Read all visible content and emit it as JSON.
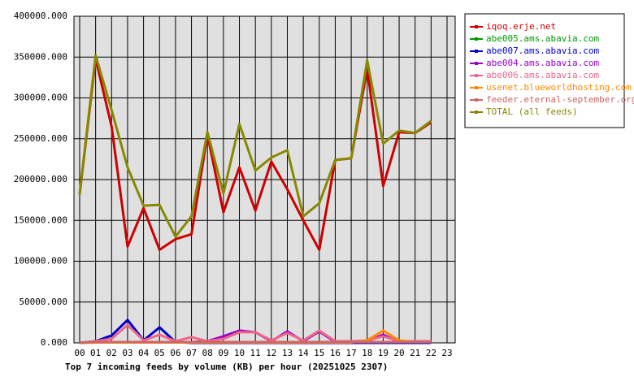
{
  "chart_data": {
    "type": "line",
    "title": "Top 7 incoming feeds by volume (KB) per hour (20251025 2307)",
    "categories": [
      "00",
      "01",
      "02",
      "03",
      "04",
      "05",
      "06",
      "07",
      "08",
      "09",
      "10",
      "11",
      "12",
      "13",
      "14",
      "15",
      "16",
      "17",
      "18",
      "19",
      "20",
      "21",
      "22",
      "23"
    ],
    "ylim": [
      0,
      400000
    ],
    "yticks": [
      {
        "value": 0,
        "label": "0.000"
      },
      {
        "value": 50000,
        "label": "50000.000"
      },
      {
        "value": 100000,
        "label": "100000.000"
      },
      {
        "value": 150000,
        "label": "150000.000"
      },
      {
        "value": 200000,
        "label": "200000.000"
      },
      {
        "value": 250000,
        "label": "250000.000"
      },
      {
        "value": 300000,
        "label": "300000.000"
      },
      {
        "value": 350000,
        "label": "350000.000"
      },
      {
        "value": 400000,
        "label": "400000.000"
      }
    ],
    "grid": true,
    "legend": "right",
    "series": [
      {
        "name": "iqoq.erje.net",
        "color": "#cc0000",
        "values": [
          182000,
          348000,
          265000,
          118000,
          165000,
          114000,
          127000,
          133000,
          255000,
          160000,
          215000,
          162000,
          222000,
          188000,
          150000,
          114000,
          224000,
          226000,
          336000,
          192000,
          258000,
          257000,
          270000,
          null
        ]
      },
      {
        "name": "abe005.ams.abavia.com",
        "color": "#009900",
        "values": [
          0,
          1000,
          1000,
          1000,
          1000,
          1000,
          1000,
          1000,
          1000,
          1000,
          1000,
          1000,
          1000,
          1000,
          1000,
          1000,
          1000,
          1000,
          1000,
          1000,
          1000,
          1000,
          1000,
          null
        ]
      },
      {
        "name": "abe007.ams.abavia.com",
        "color": "#0000cc",
        "values": [
          0,
          2000,
          9000,
          28000,
          3000,
          19000,
          1000,
          0,
          0,
          0,
          0,
          0,
          0,
          0,
          0,
          0,
          0,
          0,
          0,
          0,
          0,
          0,
          0,
          null
        ]
      },
      {
        "name": "abe004.ams.abavia.com",
        "color": "#9900cc",
        "values": [
          0,
          1000,
          1000,
          1000,
          1000,
          1000,
          1000,
          1000,
          2000,
          8000,
          15000,
          13000,
          2000,
          14000,
          2000,
          14000,
          1000,
          1000,
          2000,
          10000,
          1000,
          1000,
          1000,
          null
        ]
      },
      {
        "name": "abe006.ams.abavia.com",
        "color": "#ee6688",
        "values": [
          0,
          2000,
          5000,
          22000,
          3000,
          10000,
          2000,
          7000,
          2000,
          5000,
          13000,
          13000,
          3000,
          12000,
          3000,
          15000,
          2000,
          2000,
          3000,
          8000,
          2000,
          2000,
          2000,
          null
        ]
      },
      {
        "name": "usenet.blueworldhosting.com",
        "color": "#ff8800",
        "values": [
          0,
          500,
          500,
          500,
          500,
          500,
          500,
          500,
          500,
          500,
          500,
          500,
          500,
          500,
          500,
          500,
          500,
          500,
          3000,
          15000,
          3000,
          1000,
          1000,
          null
        ]
      },
      {
        "name": "feeder.eternal-september.org",
        "color": "#cc6666",
        "values": [
          0,
          1000,
          1000,
          1000,
          1000,
          1000,
          1000,
          1000,
          1000,
          1000,
          1000,
          1000,
          1000,
          1000,
          1000,
          1000,
          1000,
          1000,
          1000,
          1000,
          1000,
          1000,
          1000,
          null
        ]
      },
      {
        "name": "TOTAL (all feeds)",
        "color": "#888800",
        "values": [
          182000,
          352000,
          285000,
          215000,
          168000,
          169000,
          130000,
          155000,
          258000,
          183000,
          268000,
          211000,
          227000,
          236000,
          155000,
          171000,
          224000,
          226000,
          346000,
          244000,
          260000,
          257000,
          272000,
          null
        ]
      }
    ]
  }
}
